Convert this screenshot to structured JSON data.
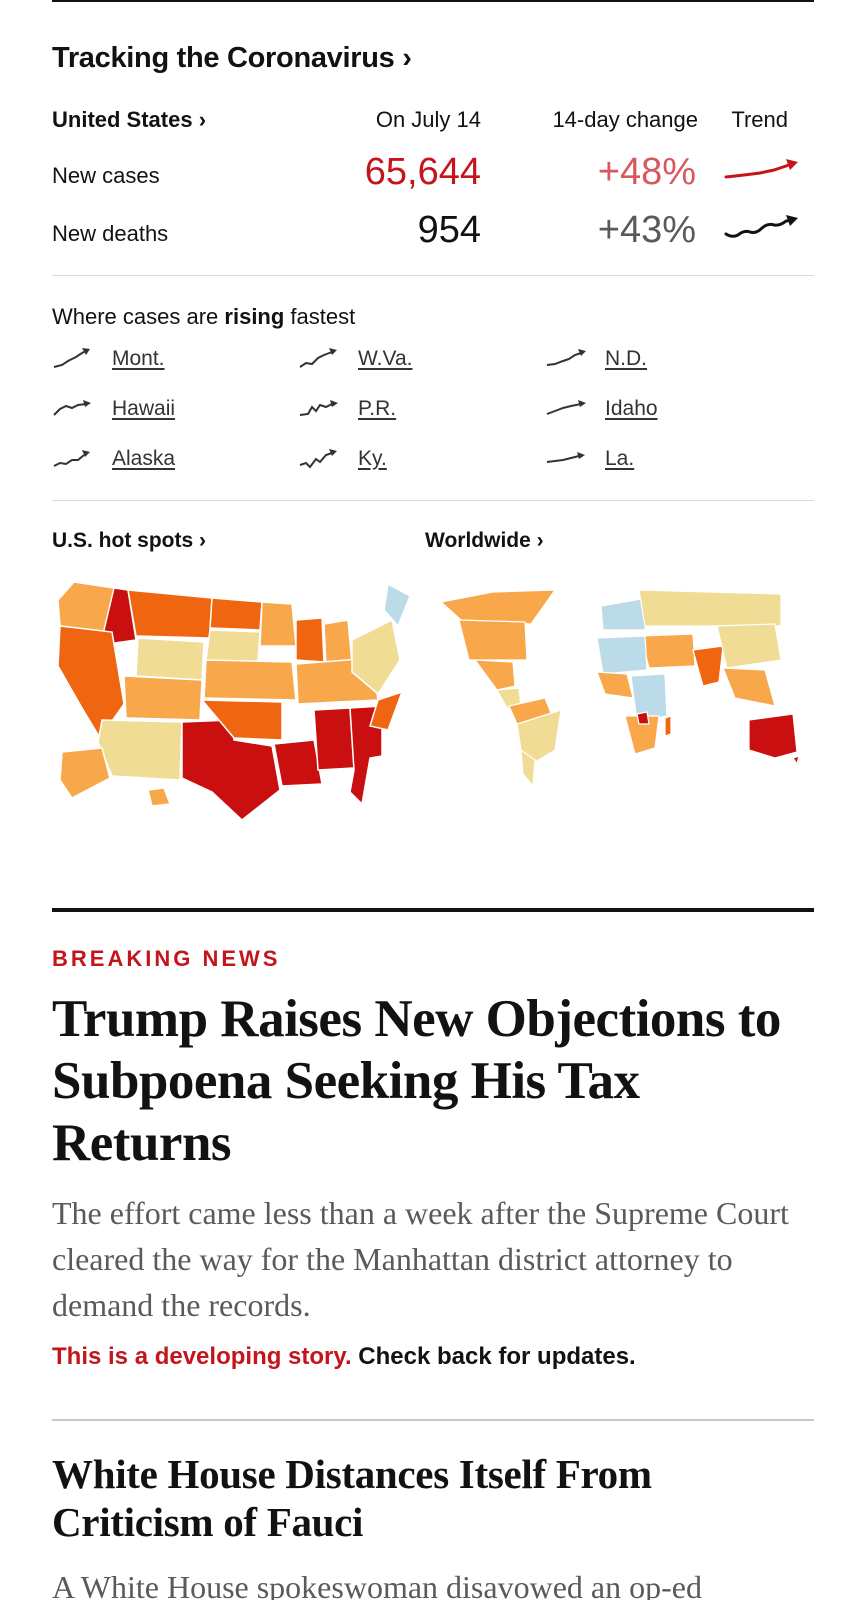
{
  "tracker": {
    "title": "Tracking the Coronavirus ›",
    "country_label": "United States ›",
    "date_header": "On July 14",
    "change_header": "14-day change",
    "trend_header": "Trend",
    "rows": [
      {
        "label": "New cases",
        "value": "65,644",
        "change": "+48%",
        "trend_color": "#c4151c"
      },
      {
        "label": "New deaths",
        "value": "954",
        "change": "+43%",
        "trend_color": "#121212"
      }
    ]
  },
  "rising": {
    "prefix": "Where cases are ",
    "bold": "rising",
    "suffix": " fastest",
    "states": [
      "Mont.",
      "W.Va.",
      "N.D.",
      "Hawaii",
      "P.R.",
      "Idaho",
      "Alaska",
      "Ky.",
      "La."
    ]
  },
  "maps": {
    "us_label": "U.S. hot spots ›",
    "world_label": "Worldwide ›",
    "colors": {
      "highest": "#c90f0f",
      "high": "#f0650f",
      "medium": "#f8a74a",
      "low": "#f1dc95",
      "decline": "#bcdbe8"
    }
  },
  "breaking": {
    "kicker": "BREAKING NEWS",
    "headline": "Trump Raises New Objections to Subpoena Seeking His Tax Returns",
    "summary": "The effort came less than a week after the Supreme Court cleared the way for the Manhattan district attorney to demand the records.",
    "developing_red": "This is a developing story.",
    "developing_rest": " Check back for updates."
  },
  "story2": {
    "headline": "White House Distances Itself From Criticism of Fauci",
    "summary": "A White House spokeswoman disavowed an op-ed"
  }
}
